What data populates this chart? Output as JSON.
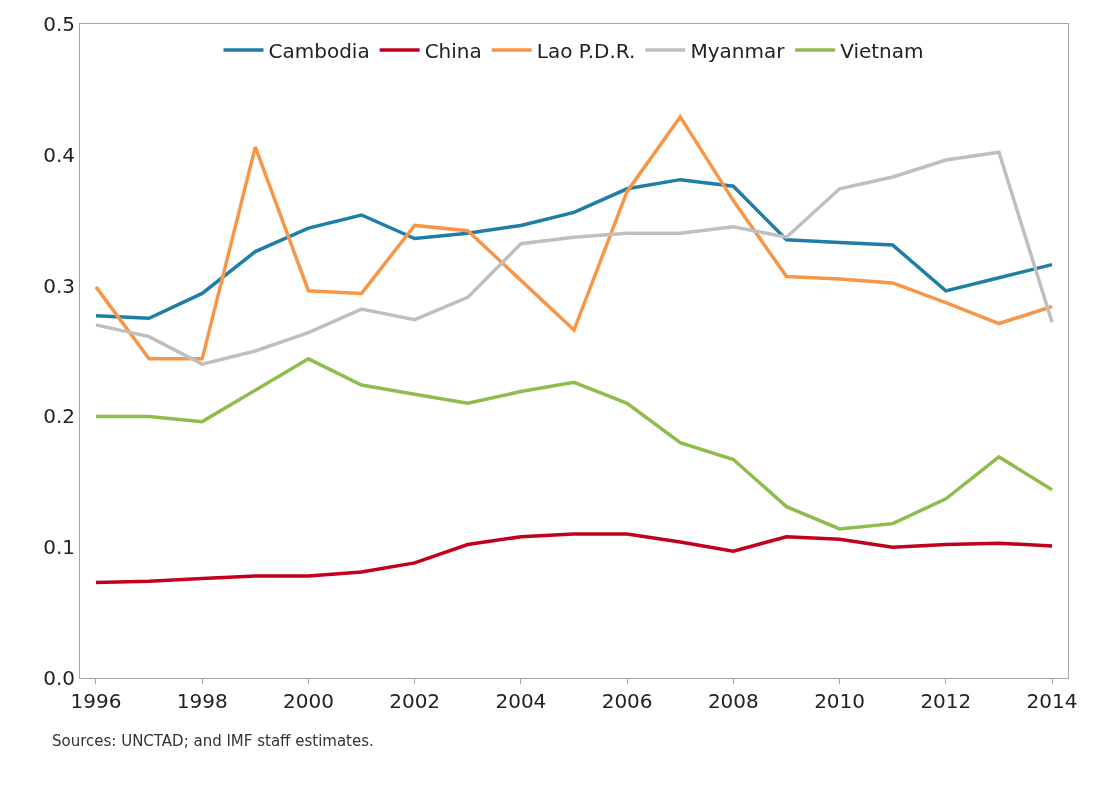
{
  "chart_data": {
    "type": "line",
    "x": [
      1996,
      1997,
      1998,
      1999,
      2000,
      2001,
      2002,
      2003,
      2004,
      2005,
      2006,
      2007,
      2008,
      2009,
      2010,
      2011,
      2012,
      2013,
      2014
    ],
    "series": [
      {
        "name": "Cambodia",
        "color": "#1f7ea6",
        "values": [
          0.277,
          0.275,
          0.294,
          0.326,
          0.344,
          0.354,
          0.336,
          0.34,
          0.346,
          0.356,
          0.374,
          0.381,
          0.376,
          0.335,
          0.333,
          0.331,
          0.296,
          0.306,
          0.316
        ]
      },
      {
        "name": "China",
        "color": "#c0001e",
        "values": [
          0.073,
          0.074,
          0.076,
          0.078,
          0.078,
          0.081,
          0.088,
          0.102,
          0.108,
          0.11,
          0.11,
          0.104,
          0.097,
          0.108,
          0.106,
          0.1,
          0.102,
          0.103,
          0.101
        ]
      },
      {
        "name": "Lao P.D.R.",
        "color": "#f79646",
        "values": [
          0.299,
          0.244,
          0.244,
          0.406,
          0.296,
          0.294,
          0.346,
          0.342,
          0.304,
          0.266,
          0.372,
          0.429,
          0.365,
          0.307,
          0.305,
          0.302,
          0.287,
          0.271,
          0.284
        ]
      },
      {
        "name": "Myanmar",
        "color": "#bfbfbf",
        "values": [
          0.27,
          0.261,
          0.24,
          0.25,
          0.264,
          0.282,
          0.274,
          0.291,
          0.332,
          0.337,
          0.34,
          0.34,
          0.345,
          0.337,
          0.374,
          0.383,
          0.396,
          0.402,
          0.272
        ]
      },
      {
        "name": "Vietnam",
        "color": "#8fbc4f",
        "values": [
          0.2,
          0.2,
          0.196,
          0.22,
          0.244,
          0.224,
          0.217,
          0.21,
          0.219,
          0.226,
          0.21,
          0.18,
          0.167,
          0.131,
          0.114,
          0.118,
          0.137,
          0.169,
          0.144
        ]
      }
    ],
    "xlim": [
      1995.7,
      2014.3
    ],
    "xticks": [
      1996,
      1998,
      2000,
      2002,
      2004,
      2006,
      2008,
      2010,
      2012,
      2014
    ],
    "ylim": [
      0,
      0.5
    ],
    "yticks": [
      {
        "value": 0,
        "label": "0.0"
      },
      0.1,
      0.2,
      0.3,
      0.4,
      0.5
    ],
    "legend": "top",
    "line_style": "solid",
    "marker": "none",
    "annotations": [
      "Sources: UNCTAD; and IMF staff estimates."
    ]
  }
}
